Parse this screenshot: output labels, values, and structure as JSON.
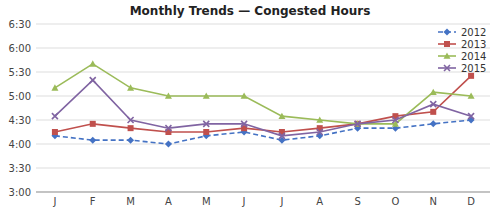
{
  "chart_data": {
    "type": "line",
    "title": "Monthly Trends — Congested Hours",
    "categories": [
      "J",
      "F",
      "M",
      "A",
      "M",
      "J",
      "J",
      "A",
      "S",
      "O",
      "N",
      "D"
    ],
    "series": [
      {
        "name": "2012",
        "color": "#4472C4",
        "marker": "diamond",
        "line_style": "dashed",
        "values": [
          4.17,
          4.08,
          4.08,
          4.0,
          4.17,
          4.25,
          4.08,
          4.17,
          4.33,
          4.33,
          4.42,
          4.5
        ]
      },
      {
        "name": "2013",
        "color": "#C0504D",
        "marker": "square",
        "line_style": "solid",
        "values": [
          4.25,
          4.42,
          4.33,
          4.25,
          4.25,
          4.33,
          4.25,
          4.33,
          4.42,
          4.58,
          4.67,
          5.42
        ]
      },
      {
        "name": "2014",
        "color": "#9BBB59",
        "marker": "triangle",
        "line_style": "solid",
        "values": [
          5.17,
          5.67,
          5.17,
          5.0,
          5.0,
          5.0,
          4.58,
          4.5,
          4.42,
          4.42,
          5.08,
          5.0
        ]
      },
      {
        "name": "2015",
        "color": "#8064A2",
        "marker": "x",
        "line_style": "solid",
        "values": [
          4.58,
          5.33,
          4.5,
          4.33,
          4.42,
          4.42,
          4.17,
          4.25,
          4.42,
          4.5,
          4.83,
          4.58
        ]
      }
    ],
    "ylim": [
      3.0,
      6.5
    ],
    "yticks": [
      {
        "value": 3.0,
        "label": "3:00"
      },
      {
        "value": 3.5,
        "label": "3:30"
      },
      {
        "value": 4.0,
        "label": "4:00"
      },
      {
        "value": 4.5,
        "label": "4:30"
      },
      {
        "value": 5.0,
        "label": "5:00"
      },
      {
        "value": 5.5,
        "label": "5:30"
      },
      {
        "value": 6.0,
        "label": "6:00"
      },
      {
        "value": 6.5,
        "label": "6:30"
      }
    ],
    "grid": true,
    "legend": "upper right"
  }
}
